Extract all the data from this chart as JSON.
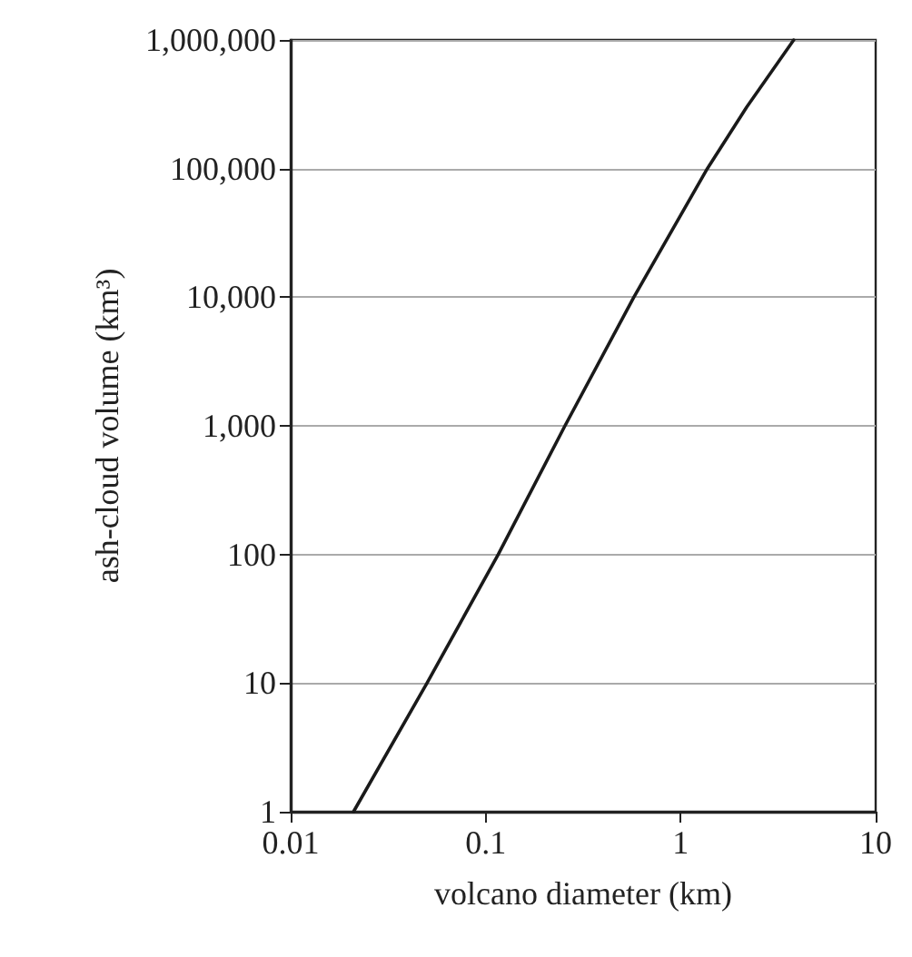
{
  "chart_data": {
    "type": "line",
    "xlabel": "volcano diameter (km)",
    "ylabel": "ash-cloud volume (km³)",
    "series": [
      {
        "color": "#1a1a1a",
        "x": [
          0.021,
          0.05,
          0.116,
          0.255,
          0.575,
          1.37,
          2.18,
          3.8
        ],
        "values": [
          1,
          10,
          100,
          1000,
          10000,
          100000,
          300000,
          1000000
        ]
      }
    ],
    "log": "xy",
    "xlim": [
      0.01,
      10
    ],
    "ylim": [
      1,
      1000000
    ],
    "xticks": [
      0.01,
      0.1,
      1,
      10
    ],
    "yticks": [
      1,
      10,
      100,
      {
        "value": 1000,
        "label": "1,000"
      },
      {
        "value": 10000,
        "label": "10,000"
      },
      {
        "value": 100000,
        "label": "100,000"
      },
      {
        "value": 1000000,
        "label": "1,000,000"
      }
    ],
    "grid": "y",
    "marker": "none",
    "line_style": "solid"
  }
}
